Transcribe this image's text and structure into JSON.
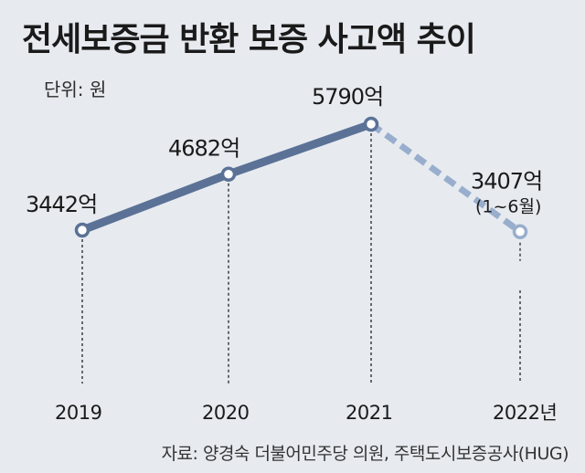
{
  "header": {
    "title": "전세보증금 반환 보증 사고액 추이",
    "unit": "단위: 원"
  },
  "footer": {
    "source": "자료: 양경숙 더불어민주당 의원, 주택도시보증공사(HUG)"
  },
  "colors": {
    "line_solid": "#5b7296",
    "line_dashed": "#99aecd",
    "marker_fill": "#ffffff",
    "background": "#e7ebf0"
  },
  "chart_data": {
    "type": "line",
    "title": "전세보증금 반환 보증 사고액 추이",
    "ylabel": "단위: 원",
    "xlabel": "",
    "categories": [
      "2019",
      "2020",
      "2021",
      "2022년"
    ],
    "values": [
      3442,
      4682,
      5790,
      3407
    ],
    "value_labels": [
      "3442억",
      "4682억",
      "5790억",
      "3407억"
    ],
    "notes": [
      "",
      "",
      "",
      "(1~6월)"
    ],
    "dashed_from_index": 2,
    "ylim": [
      0,
      6500
    ],
    "grid": false,
    "legend": "none"
  }
}
